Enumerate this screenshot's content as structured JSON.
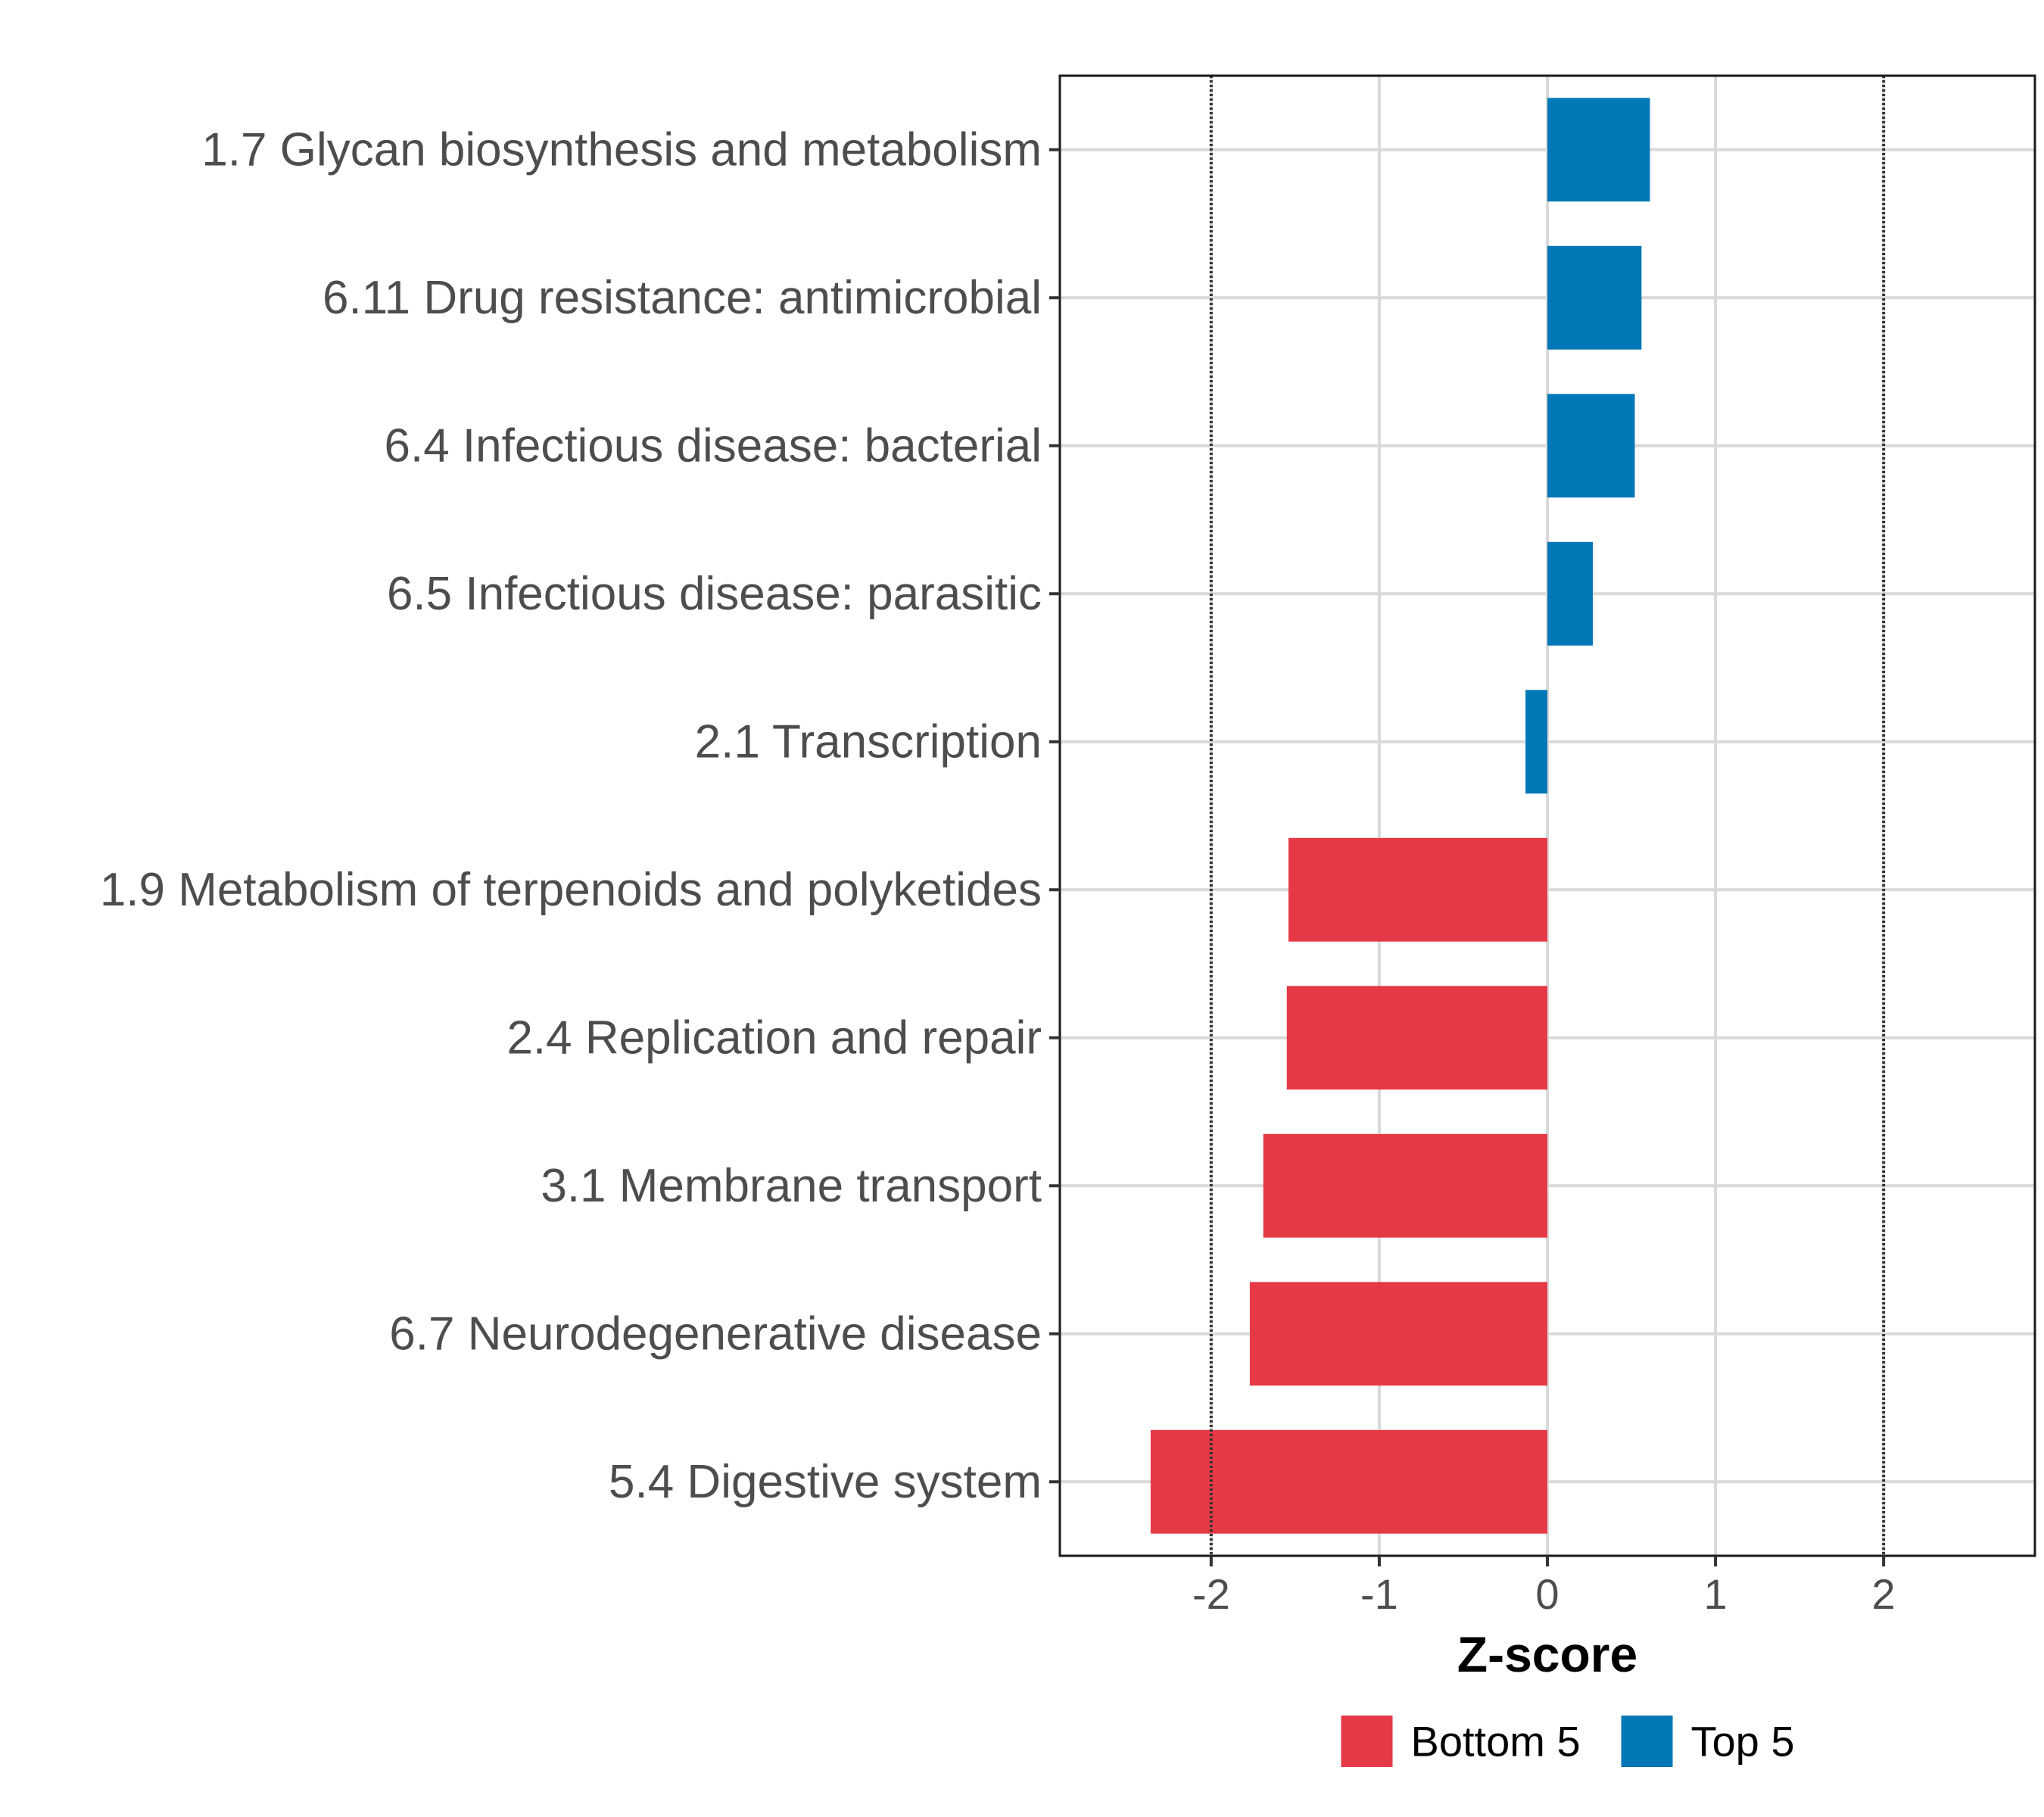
{
  "chart_data": {
    "type": "bar",
    "orientation": "horizontal",
    "categories": [
      "1.7 Glycan biosynthesis and metabolism",
      "6.11 Drug resistance: antimicrobial",
      "6.4 Infectious disease: bacterial",
      "6.5 Infectious disease: parasitic",
      "2.1 Transcription",
      "1.9 Metabolism of terpenoids and polyketides",
      "2.4 Replication and repair",
      "3.1 Membrane transport",
      "6.7 Neurodegenerative disease",
      "5.4 Digestive system"
    ],
    "values": [
      0.61,
      0.56,
      0.52,
      0.27,
      -0.13,
      -1.54,
      -1.55,
      -1.69,
      -1.77,
      -2.36
    ],
    "groups": [
      "Top 5",
      "Top 5",
      "Top 5",
      "Top 5",
      "Top 5",
      "Bottom 5",
      "Bottom 5",
      "Bottom 5",
      "Bottom 5",
      "Bottom 5"
    ],
    "xlabel": "Z-score",
    "ylabel": "",
    "xlim": [
      -2.9,
      2.9
    ],
    "xticks": [
      -2,
      -1,
      0,
      1,
      2
    ],
    "xtick_labels": [
      "-2",
      "-1",
      "0",
      "1",
      "2"
    ],
    "reference_lines": [
      -2,
      2
    ],
    "grid": true,
    "legend": {
      "position": "bottom",
      "entries": [
        {
          "label": "Bottom 5",
          "color": "#e63946"
        },
        {
          "label": "Top 5",
          "color": "#0077b6"
        }
      ]
    }
  }
}
